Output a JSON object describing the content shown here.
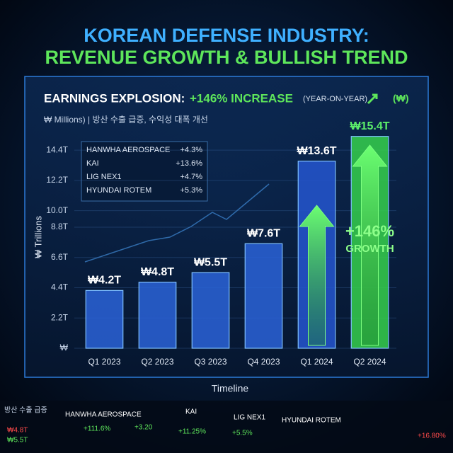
{
  "chart_data": {
    "type": "bar",
    "title_lines": [
      "KOREAN DEFENSE INDUSTRY:",
      "REVENUE GROWTH & BULLISH TREND"
    ],
    "subtitle": {
      "lead": "EARNINGS EXPLOSION:",
      "highlight": "+146% INCREASE",
      "note": "(YEAR-ON-YEAR)",
      "unit": "(₩)"
    },
    "caption": "₩ Millions) | 방산 수출 급증, 수익성 대폭 개선",
    "ylabel": "₩ Trillions",
    "xlabel": "Timeline",
    "categories": [
      "Q1 2023",
      "Q2 2023",
      "Q3 2023",
      "Q4 2023",
      "Q1 2024",
      "Q2 2024"
    ],
    "values": [
      4.2,
      4.8,
      5.5,
      7.6,
      13.6,
      15.4
    ],
    "value_labels": [
      "₩4.2T",
      "₩4.8T",
      "₩5.5T",
      "₩7.6T",
      "₩13.6T",
      "₩15.4T"
    ],
    "colors": [
      "#2a63d8",
      "#2a63d8",
      "#2a63d8",
      "#2a63d8",
      "#2456d0",
      "#35d04c"
    ],
    "value_label_colors": [
      "#ffffff",
      "#ffffff",
      "#ffffff",
      "#ffffff",
      "#ffffff",
      "#5cf06a"
    ],
    "ylim": [
      0,
      16
    ],
    "yticks": [
      {
        "value": 0,
        "label": "₩"
      },
      {
        "value": 2.2,
        "label": "2.2T"
      },
      {
        "value": 4.4,
        "label": "4.4T"
      },
      {
        "value": 6.6,
        "label": "6.6T"
      },
      {
        "value": 8.8,
        "label": "8.8T"
      },
      {
        "value": 10.0,
        "label": "10.0T"
      },
      {
        "value": 12.2,
        "label": "12.2T"
      },
      {
        "value": 14.4,
        "label": "14.4T"
      }
    ],
    "grid": true,
    "legend_entries": [
      {
        "name": "HANWHA AEROSPACE",
        "change": "+4.3%"
      },
      {
        "name": "KAI",
        "change": "+13.6%"
      },
      {
        "name": "LIG NEX1",
        "change": "+4.7%"
      },
      {
        "name": "HYUNDAI ROTEM",
        "change": "+5.3%"
      }
    ],
    "annotations": [
      "+146%",
      "GROWTH"
    ],
    "ticker": [
      "방산 수출 급증",
      "HANWHA AEROSPACE",
      "KAI",
      "LIG NEX1",
      "HYUNDAI ROTEM",
      "+111.6%",
      "+3.20",
      "+11.25%",
      "+5.5%",
      "+16.80%",
      "₩4.8T",
      "₩5.5T"
    ]
  }
}
